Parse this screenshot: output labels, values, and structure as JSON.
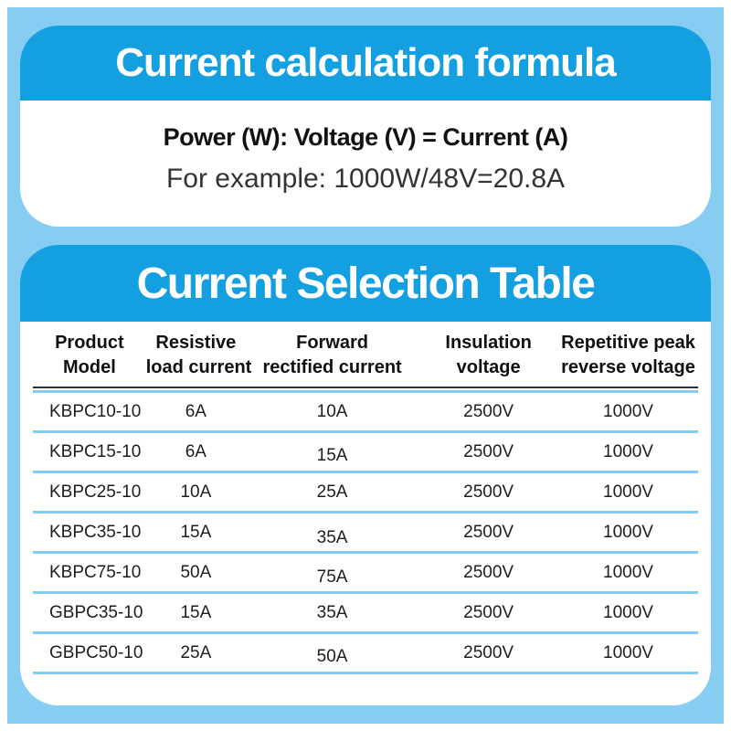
{
  "colors": {
    "background_blue": "#87CCF1",
    "header_blue": "#149FE0",
    "separator_blue": "#7FCDF3",
    "header_rule_dark": "#26323E",
    "title_text": "#ffffff",
    "body_text": "#1d1d1d"
  },
  "formula_card": {
    "title": "Current calculation formula",
    "formula": "Power (W): Voltage (V) = Current (A)",
    "example": "For example: 1000W/48V=20.8A"
  },
  "selection_card": {
    "title": "Current Selection Table",
    "columns": [
      {
        "line1": "Product",
        "line2": "Model"
      },
      {
        "line1": "Resistive",
        "line2": "load current"
      },
      {
        "line1": "Forward",
        "line2": "rectified current"
      },
      {
        "line1": "Insulation",
        "line2": "voltage"
      },
      {
        "line1": "Repetitive peak",
        "line2": "reverse voltage"
      }
    ],
    "rows": [
      {
        "model": "KBPC10-10",
        "resistive_load_current": "6A",
        "forward_rectified_current": "10A",
        "insulation_voltage": "2500V",
        "repetitive_peak_reverse_voltage": "1000V"
      },
      {
        "model": "KBPC15-10",
        "resistive_load_current": "6A",
        "forward_rectified_current": "15A",
        "insulation_voltage": "2500V",
        "repetitive_peak_reverse_voltage": "1000V"
      },
      {
        "model": "KBPC25-10",
        "resistive_load_current": "10A",
        "forward_rectified_current": "25A",
        "insulation_voltage": "2500V",
        "repetitive_peak_reverse_voltage": "1000V"
      },
      {
        "model": "KBPC35-10",
        "resistive_load_current": "15A",
        "forward_rectified_current": "35A",
        "insulation_voltage": "2500V",
        "repetitive_peak_reverse_voltage": "1000V"
      },
      {
        "model": "KBPC75-10",
        "resistive_load_current": "50A",
        "forward_rectified_current": "75A",
        "insulation_voltage": "2500V",
        "repetitive_peak_reverse_voltage": "1000V"
      },
      {
        "model": "GBPC35-10",
        "resistive_load_current": "15A",
        "forward_rectified_current": "35A",
        "insulation_voltage": "2500V",
        "repetitive_peak_reverse_voltage": "1000V"
      },
      {
        "model": "GBPC50-10",
        "resistive_load_current": "25A",
        "forward_rectified_current": "50A",
        "insulation_voltage": "2500V",
        "repetitive_peak_reverse_voltage": "1000V"
      }
    ]
  }
}
